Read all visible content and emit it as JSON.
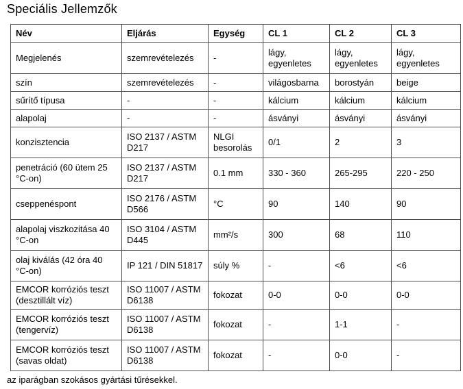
{
  "page": {
    "title": "Speciális Jellemzők",
    "footer": "az iparágban szokásos gyártási tűrésekkel."
  },
  "table": {
    "columns": [
      "Név",
      "Eljárás",
      "Egység",
      "CL 1",
      "CL 2",
      "CL 3"
    ],
    "rows": [
      [
        "Megjelenés",
        "szemrevételezés",
        "-",
        "lágy, egyenletes",
        "lágy, egyenletes",
        "lágy, egyenletes"
      ],
      [
        "szín",
        "szemrevételezés",
        "-",
        "világosbarna",
        "borostyán",
        "beige"
      ],
      [
        "sűrítő típusa",
        "-",
        "-",
        "kálcium",
        "kálcium",
        "kálcium"
      ],
      [
        "alapolaj",
        "-",
        "-",
        "ásványi",
        "ásványi",
        "ásványi"
      ],
      [
        "konzisztencia",
        "ISO 2137 / ASTM D217",
        "NLGI besorolás",
        "0/1",
        "2",
        "3"
      ],
      [
        "penetráció (60 ütem 25 °C-on)",
        "ISO 2137 / ASTM D217",
        "0.1 mm",
        "330 - 360",
        "265-295",
        "220 - 250"
      ],
      [
        "cseppenéspont",
        "ISO 2176 / ASTM D566",
        "°C",
        "90",
        "140",
        "90"
      ],
      [
        "alapolaj viszkozitása 40 °C-on",
        "ISO 3104 / ASTM D445",
        "mm²/s",
        "300",
        "68",
        "110"
      ],
      [
        "olaj kiválás (42 óra 40 °C-on)",
        "IP 121 / DIN 51817",
        "súly %",
        "-",
        "<6",
        "<6"
      ],
      [
        "EMCOR korróziós teszt (desztillált víz)",
        "ISO 11007 / ASTM D6138",
        "fokozat",
        "0-0",
        "0-0",
        "0-0"
      ],
      [
        "EMCOR korróziós teszt (tengervíz)",
        "ISO 11007 / ASTM D6138",
        "fokozat",
        "-",
        "1-1",
        "-"
      ],
      [
        "EMCOR korróziós teszt (savas oldat)",
        "ISO 11007 / ASTM D6138",
        "fokozat",
        "-",
        "0-0",
        "-"
      ]
    ]
  }
}
